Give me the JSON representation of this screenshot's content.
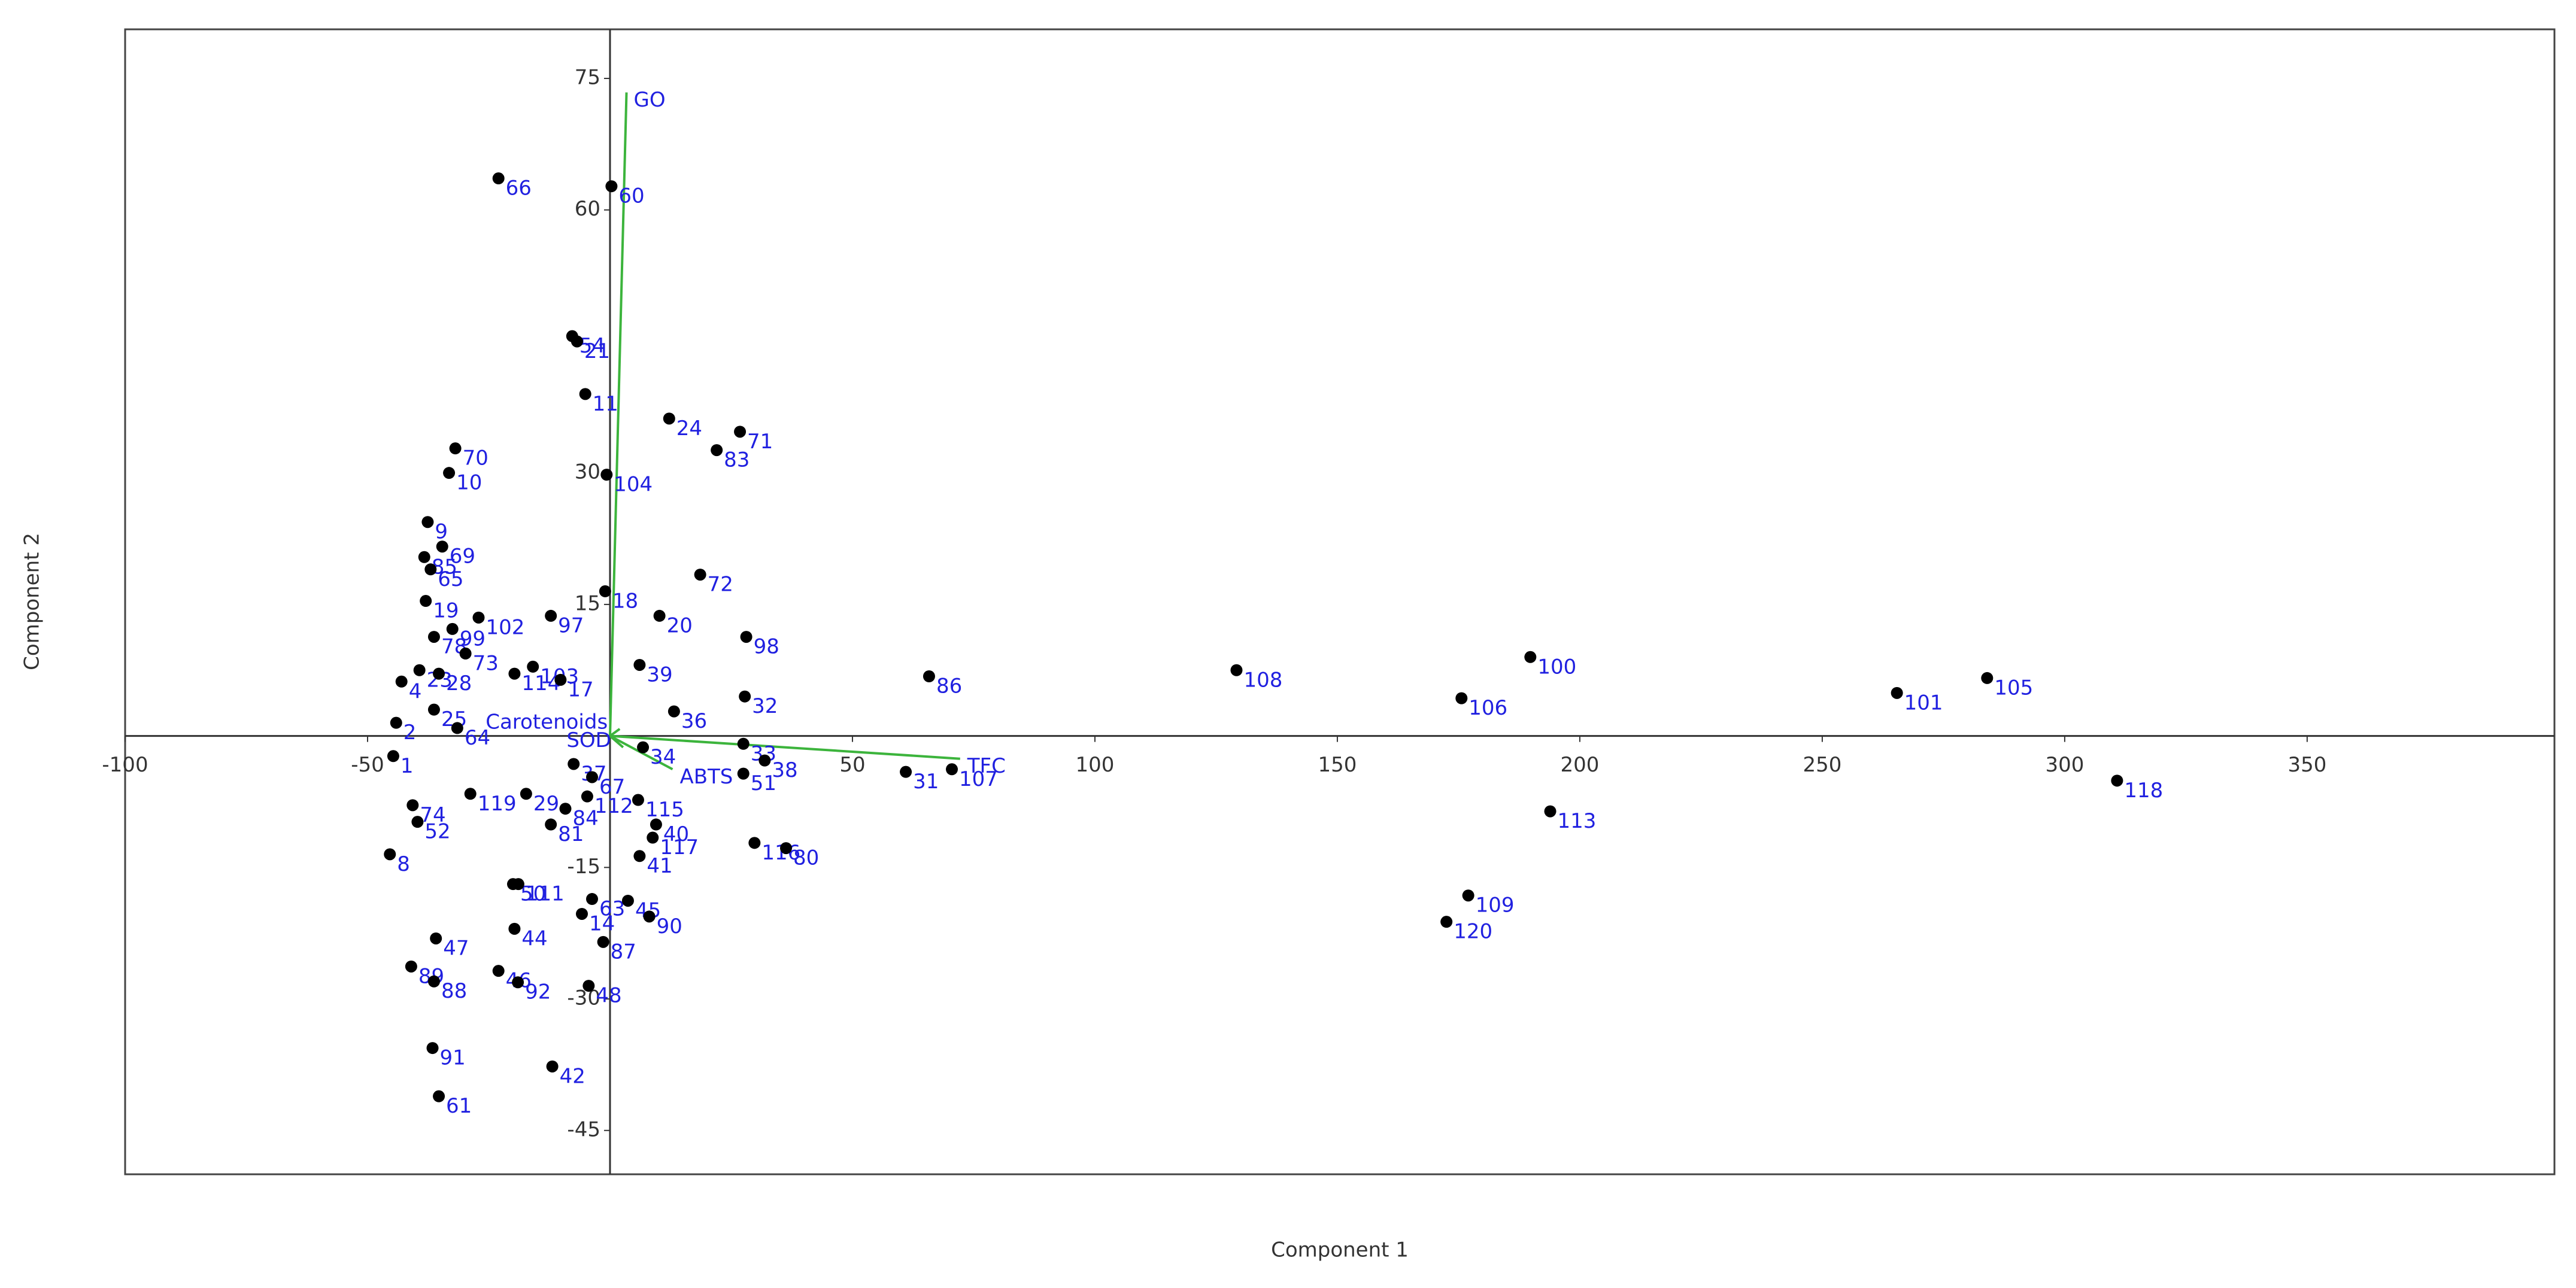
{
  "chart_data": {
    "type": "biplot",
    "xlabel": "Component 1",
    "ylabel": "Component 2",
    "xlim": [
      -100,
      401
    ],
    "ylim": [
      -50,
      80.6
    ],
    "xticks": [
      -100,
      -50,
      50,
      100,
      150,
      200,
      250,
      300,
      350
    ],
    "yticks": [
      -45,
      -30,
      -15,
      15,
      30,
      60,
      75
    ],
    "points": {
      "color": "#000000",
      "label_color": "#2020e0",
      "labels": [
        "66",
        "60",
        "54",
        "21",
        "11",
        "24",
        "71",
        "83",
        "70",
        "10",
        "104",
        "9",
        "85",
        "69",
        "65",
        "72",
        "18",
        "19",
        "97",
        "99",
        "102",
        "20",
        "78",
        "98",
        "73",
        "103",
        "114",
        "39",
        "86",
        "108",
        "100",
        "105",
        "101",
        "106",
        "32",
        "17",
        "4",
        "23",
        "28",
        "36",
        "2",
        "25",
        "64",
        "33",
        "34",
        "38",
        "37",
        "67",
        "31",
        "107",
        "51",
        "118",
        "113",
        "112",
        "119",
        "29",
        "84",
        "115",
        "40",
        "81",
        "116",
        "80",
        "117",
        "41",
        "50",
        "111",
        "63",
        "45",
        "14",
        "90",
        "44",
        "87",
        "47",
        "46",
        "89",
        "88",
        "92",
        "48",
        "109",
        "120",
        "91",
        "42",
        "61",
        "52",
        "74",
        "8",
        "1"
      ],
      "x": [
        -23,
        0.3,
        -7.8,
        -6.8,
        -5.1,
        12.2,
        26.8,
        22,
        -31.9,
        -33.2,
        -0.7,
        -37.6,
        -38.3,
        -34.6,
        -37,
        18.6,
        -1,
        -38,
        -12.2,
        -32.5,
        -27.1,
        10.2,
        -36.3,
        28.1,
        -29.8,
        -15.9,
        -19.7,
        6.1,
        65.8,
        129.2,
        189.8,
        284,
        265.4,
        175.6,
        27.8,
        -10.2,
        -43,
        -39.3,
        -35.3,
        13.2,
        -44.1,
        -36.3,
        -31.5,
        27.5,
        6.8,
        31.9,
        -7.5,
        -3.7,
        61,
        70.5,
        27.5,
        310.8,
        193.9,
        -4.7,
        -28.8,
        -17.3,
        -9.2,
        5.8,
        9.5,
        -12.2,
        29.8,
        36.3,
        8.8,
        6.1,
        -20,
        -18.9,
        -3.7,
        3.7,
        -5.8,
        8.1,
        -19.7,
        -1.4,
        -35.9,
        -23,
        -41,
        -36.3,
        -19,
        -4.4,
        177,
        172.5,
        -36.6,
        -11.9,
        -35.3,
        -39.7,
        -40.7,
        -45.4,
        -44.7
      ],
      "y": [
        63.6,
        62.7,
        45.6,
        45,
        39,
        36.2,
        34.7,
        32.6,
        32.8,
        30,
        29.8,
        24.4,
        20.4,
        21.6,
        19,
        18.4,
        16.5,
        15.4,
        13.7,
        12.2,
        13.5,
        13.7,
        11.3,
        11.3,
        9.4,
        7.9,
        7.1,
        8.1,
        6.8,
        7.5,
        9,
        6.6,
        4.9,
        4.3,
        4.5,
        6.4,
        6.2,
        7.5,
        7.1,
        2.8,
        1.5,
        3,
        0.9,
        -0.9,
        -1.3,
        -2.8,
        -3.2,
        -4.7,
        -4.1,
        -3.8,
        -4.3,
        -5.1,
        -8.6,
        -6.9,
        -6.6,
        -6.6,
        -8.3,
        -7.3,
        -10.1,
        -10.1,
        -12.2,
        -12.8,
        -11.6,
        -13.7,
        -16.9,
        -16.9,
        -18.6,
        -18.8,
        -20.3,
        -20.6,
        -22,
        -23.5,
        -23.1,
        -26.8,
        -26.3,
        -28,
        -28.1,
        -28.5,
        -18.2,
        -21.2,
        -35.6,
        -37.7,
        -41.1,
        -9.8,
        -7.9,
        -13.5,
        -2.3
      ]
    },
    "loadings": {
      "color": "#3cb43c",
      "label_color": "#2020e0",
      "labels": [
        "GO",
        "TFC",
        "ABTS",
        "SOD",
        "Carotenoids"
      ],
      "x": [
        3.4,
        72.2,
        12.9,
        2.7,
        2
      ],
      "y": [
        73.4,
        -2.6,
        -3.8,
        -1.3,
        0.8
      ]
    }
  }
}
